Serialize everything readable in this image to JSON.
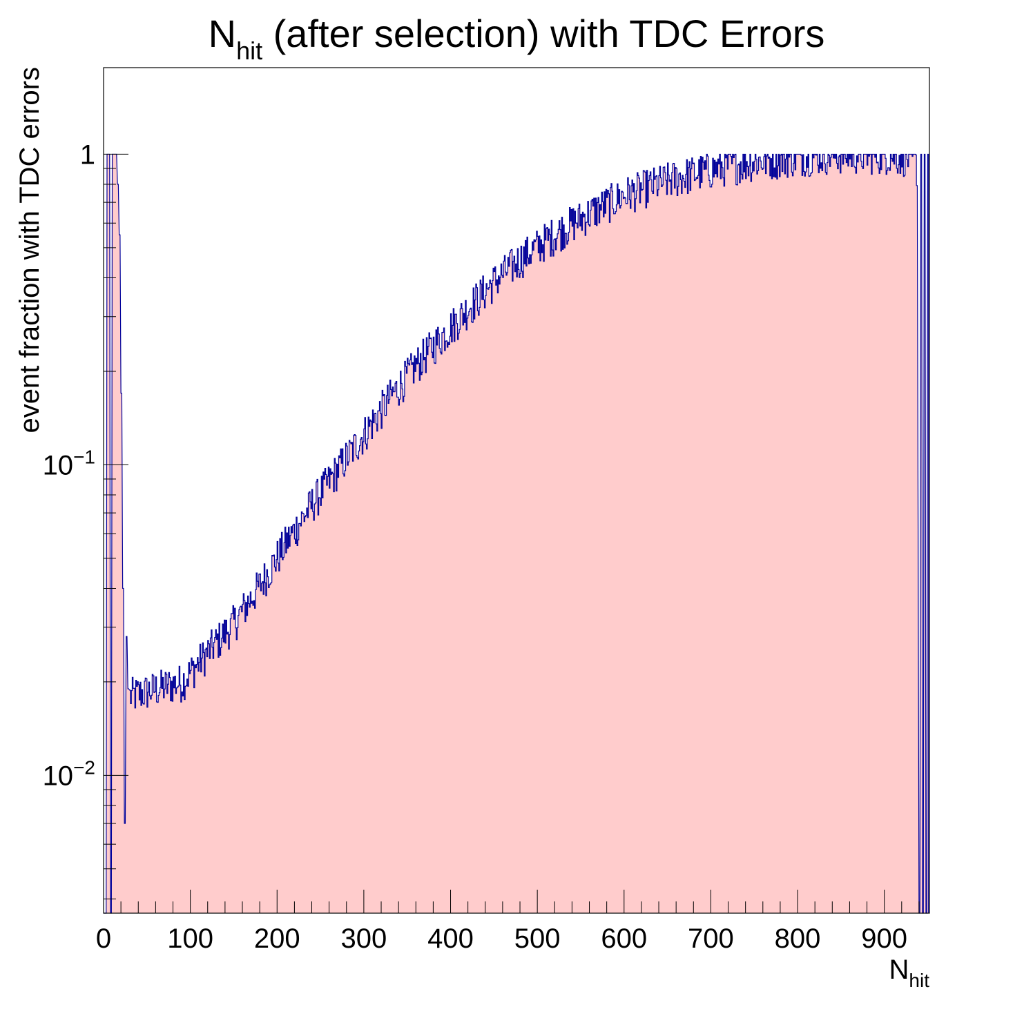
{
  "chart_data": {
    "type": "histogram",
    "title": {
      "main": "N",
      "sub": "hit",
      "rest": " (after selection) with TDC Errors"
    },
    "xlabel": {
      "main": "N",
      "sub": "hit"
    },
    "ylabel": "event fraction with TDC errors",
    "xlim": [
      0,
      952
    ],
    "ylim": [
      0.0036,
      1.9
    ],
    "yscale": "log",
    "grid": false,
    "legend": "none",
    "x_ticks": [
      "0",
      "100",
      "200",
      "300",
      "400",
      "500",
      "600",
      "700",
      "800",
      "900"
    ],
    "y_ticks": [
      {
        "base": "10",
        "exp": "−2",
        "value": 0.01
      },
      {
        "base": "10",
        "exp": "−1",
        "value": 0.1
      },
      {
        "base": "1",
        "exp": "",
        "value": 1
      }
    ],
    "fill_color": "#ffcccc",
    "line_color": "#000099",
    "bin_width": 1,
    "bins_low_region": {
      "x": [
        0,
        2,
        4,
        6,
        8,
        10,
        12,
        14,
        16,
        18,
        20,
        22,
        24,
        26,
        28
      ],
      "values": [
        0,
        0,
        1,
        1,
        0,
        1,
        1,
        1,
        0.8,
        0.55,
        0.17,
        0.04,
        0.007,
        0.028,
        0.019
      ]
    },
    "bins_high_region": {
      "x": [
        940,
        942,
        944,
        946,
        948,
        950
      ],
      "values": [
        0,
        1,
        0,
        1,
        0,
        1
      ]
    },
    "trend_anchors": {
      "x": [
        30,
        60,
        90,
        120,
        150,
        180,
        210,
        240,
        270,
        300,
        330,
        360,
        390,
        420,
        450,
        480,
        510,
        540,
        570,
        600,
        630,
        660,
        690,
        720,
        750,
        780,
        810,
        840,
        870,
        900,
        930,
        938
      ],
      "values": [
        0.018,
        0.019,
        0.02,
        0.025,
        0.031,
        0.041,
        0.056,
        0.075,
        0.097,
        0.126,
        0.165,
        0.21,
        0.26,
        0.32,
        0.39,
        0.46,
        0.53,
        0.6,
        0.67,
        0.74,
        0.79,
        0.84,
        0.88,
        0.92,
        0.95,
        0.97,
        0.99,
        1.0,
        1.0,
        1.0,
        0.98,
        0.9
      ]
    },
    "noise_fraction": 0.09
  }
}
